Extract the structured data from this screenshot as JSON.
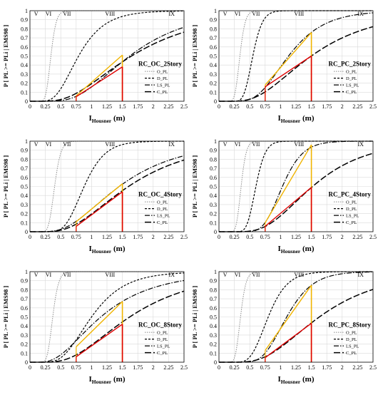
{
  "chart_data": [
    {
      "type": "line",
      "title": "RC_OC_2Story",
      "xlabel": "I",
      "xlabel_sub": "Housner",
      "xlabel_unit": " (m)",
      "ylabel": "P [ PL >= PLi | EMS98 ]",
      "xlim": [
        0,
        2.5
      ],
      "ylim": [
        0,
        1
      ],
      "xticks": [
        "0",
        "0.25",
        "0.5",
        "0.75",
        "1",
        "1.25",
        "1.5",
        "1.75",
        "2",
        "2.25",
        "2.5"
      ],
      "yticks": [
        "0",
        "0.1",
        "0.2",
        "0.3",
        "0.4",
        "0.5",
        "0.6",
        "0.7",
        "0.8",
        "0.9",
        "1"
      ],
      "intensity_labels": [
        {
          "label": "V",
          "x": 0.1
        },
        {
          "label": "VI",
          "x": 0.3
        },
        {
          "label": "VII",
          "x": 0.6
        },
        {
          "label": "VIII",
          "x": 1.3
        },
        {
          "label": "IX",
          "x": 2.3
        }
      ],
      "legend_position": "right-middle",
      "series": [
        {
          "name": "O_PL",
          "median": 0.34,
          "beta": 0.2
        },
        {
          "name": "D_PL",
          "median": 0.79,
          "beta": 0.42
        },
        {
          "name": "LS_PL",
          "median": 1.62,
          "beta": 0.48
        },
        {
          "name": "C_PL",
          "median": 1.65,
          "beta": 0.58
        }
      ],
      "highlights": [
        {
          "color": "#f0b400",
          "x_from": 0.75,
          "x_to": 1.5,
          "y_at_start": 0.06,
          "y_at_end": 0.51
        },
        {
          "color": "#e00000",
          "x_from": 0.75,
          "x_to": 1.5,
          "y_at_start": 0.05,
          "y_at_end": 0.38
        }
      ]
    },
    {
      "type": "line",
      "title": "RC_PC_2Story",
      "xlabel": "I",
      "xlabel_sub": "Housner",
      "xlabel_unit": " (m)",
      "ylabel": "P [ PL >= PLi | EMS98 ]",
      "xlim": [
        0,
        2.5
      ],
      "ylim": [
        0,
        1
      ],
      "xticks": [
        "0",
        "0.25",
        "0.5",
        "0.75",
        "1",
        "1.25",
        "1.5",
        "1.75",
        "2",
        "2.25",
        "2.5"
      ],
      "yticks": [
        "0",
        "0.1",
        "0.2",
        "0.3",
        "0.4",
        "0.5",
        "0.6",
        "0.7",
        "0.8",
        "0.9",
        "1"
      ],
      "intensity_labels": [
        {
          "label": "V",
          "x": 0.1
        },
        {
          "label": "VI",
          "x": 0.3
        },
        {
          "label": "VII",
          "x": 0.6
        },
        {
          "label": "VIII",
          "x": 1.3
        },
        {
          "label": "IX",
          "x": 2.3
        }
      ],
      "legend_position": "right-middle",
      "series": [
        {
          "name": "O_PL",
          "median": 0.34,
          "beta": 0.2
        },
        {
          "name": "D_PL",
          "median": 0.55,
          "beta": 0.22
        },
        {
          "name": "LS_PL",
          "median": 1.13,
          "beta": 0.4
        },
        {
          "name": "C_PL",
          "median": 1.5,
          "beta": 0.55
        }
      ],
      "highlights": [
        {
          "color": "#f0b400",
          "x_from": 0.75,
          "x_to": 1.5,
          "y_at_start": 0.18,
          "y_at_end": 0.76
        },
        {
          "color": "#e00000",
          "x_from": 0.75,
          "x_to": 1.5,
          "y_at_start": 0.16,
          "y_at_end": 0.5
        }
      ]
    },
    {
      "type": "line",
      "title": "RC_OC_4Story",
      "xlabel": "I",
      "xlabel_sub": "Housner",
      "xlabel_unit": " (m)",
      "ylabel": "P [ PL >= PLi | EMS98 ]",
      "xlim": [
        0,
        2.5
      ],
      "ylim": [
        0,
        1
      ],
      "xticks": [
        "0",
        "0.25",
        "0.5",
        "0.75",
        "1",
        "1.25",
        "1.5",
        "1.75",
        "2",
        "2.25",
        "2.5"
      ],
      "yticks": [
        "0",
        "0.1",
        "0.2",
        "0.3",
        "0.4",
        "0.5",
        "0.6",
        "0.7",
        "0.8",
        "0.9",
        "1"
      ],
      "intensity_labels": [
        {
          "label": "V",
          "x": 0.1
        },
        {
          "label": "VI",
          "x": 0.3
        },
        {
          "label": "VII",
          "x": 0.6
        },
        {
          "label": "VIII",
          "x": 1.3
        },
        {
          "label": "IX",
          "x": 2.3
        }
      ],
      "legend_position": "right-middle",
      "series": [
        {
          "name": "O_PL",
          "median": 0.4,
          "beta": 0.2
        },
        {
          "name": "D_PL",
          "median": 0.88,
          "beta": 0.3
        },
        {
          "name": "LS_PL",
          "median": 1.45,
          "beta": 0.55
        },
        {
          "name": "C_PL",
          "median": 1.6,
          "beta": 0.55
        }
      ],
      "highlights": [
        {
          "color": "#f0b400",
          "x_from": 0.75,
          "x_to": 1.5,
          "y_at_start": 0.11,
          "y_at_end": 0.53
        },
        {
          "color": "#e00000",
          "x_from": 0.75,
          "x_to": 1.5,
          "y_at_start": 0.06,
          "y_at_end": 0.44
        }
      ]
    },
    {
      "type": "line",
      "title": "RC_PC_4Story",
      "xlabel": "I",
      "xlabel_sub": "Housner",
      "xlabel_unit": " (m)",
      "ylabel": "P [ PL >= PLi | EMS98 ]",
      "xlim": [
        0,
        2.5
      ],
      "ylim": [
        0,
        1
      ],
      "xticks": [
        "0",
        "0.25",
        "0.5",
        "0.75",
        "1",
        "1.25",
        "1.5",
        "1.75",
        "2",
        "2.25",
        "2.5"
      ],
      "yticks": [
        "0",
        "0.1",
        "0.2",
        "0.3",
        "0.4",
        "0.5",
        "0.6",
        "0.7",
        "0.8",
        "0.9",
        "1"
      ],
      "intensity_labels": [
        {
          "label": "V",
          "x": 0.1
        },
        {
          "label": "VI",
          "x": 0.3
        },
        {
          "label": "VII",
          "x": 0.6
        },
        {
          "label": "VIII",
          "x": 1.3
        },
        {
          "label": "IX",
          "x": 2.3
        }
      ],
      "legend_position": "right-middle",
      "series": [
        {
          "name": "O_PL",
          "median": 0.36,
          "beta": 0.18
        },
        {
          "name": "D_PL",
          "median": 0.6,
          "beta": 0.2
        },
        {
          "name": "LS_PL",
          "median": 1.03,
          "beta": 0.25
        },
        {
          "name": "C_PL",
          "median": 1.52,
          "beta": 0.45
        }
      ],
      "highlights": [
        {
          "color": "#f0b400",
          "x_from": 0.75,
          "x_to": 1.5,
          "y_at_start": 0.1,
          "y_at_end": 0.96
        },
        {
          "color": "#e00000",
          "x_from": 0.75,
          "x_to": 1.5,
          "y_at_start": 0.06,
          "y_at_end": 0.49
        }
      ]
    },
    {
      "type": "line",
      "title": "RC_OC_8Story",
      "xlabel": "I",
      "xlabel_sub": "Housner",
      "xlabel_unit": " (m)",
      "ylabel": "P [ PL >= PLi | EMS98 ]",
      "xlim": [
        0,
        2.5
      ],
      "ylim": [
        0,
        1
      ],
      "xticks": [
        "0",
        "0.25",
        "0.5",
        "0.75",
        "1",
        "1.25",
        "1.5",
        "1.75",
        "2",
        "2.25",
        "2.5"
      ],
      "yticks": [
        "0",
        "0.1",
        "0.2",
        "0.3",
        "0.4",
        "0.5",
        "0.6",
        "0.7",
        "0.8",
        "0.9",
        "1"
      ],
      "intensity_labels": [
        {
          "label": "V",
          "x": 0.1
        },
        {
          "label": "VI",
          "x": 0.3
        },
        {
          "label": "VII",
          "x": 0.6
        },
        {
          "label": "VIII",
          "x": 1.3
        },
        {
          "label": "IX",
          "x": 2.3
        }
      ],
      "legend_position": "right-middle",
      "series": [
        {
          "name": "O_PL",
          "median": 0.37,
          "beta": 0.2
        },
        {
          "name": "D_PL",
          "median": 1.0,
          "beta": 0.42
        },
        {
          "name": "LS_PL",
          "median": 1.15,
          "beta": 0.6
        },
        {
          "name": "C_PL",
          "median": 1.62,
          "beta": 0.55
        }
      ],
      "highlights": [
        {
          "color": "#f0b400",
          "x_from": 0.75,
          "x_to": 1.5,
          "y_at_start": 0.17,
          "y_at_end": 0.67
        },
        {
          "color": "#e00000",
          "x_from": 0.75,
          "x_to": 1.5,
          "y_at_start": 0.06,
          "y_at_end": 0.42
        }
      ]
    },
    {
      "type": "line",
      "title": "RC_PC_8Story",
      "xlabel": "I",
      "xlabel_sub": "Housner",
      "xlabel_unit": " (m)",
      "ylabel": "P [ PL >= PLi | EMS98 ]",
      "xlim": [
        0,
        2.5
      ],
      "ylim": [
        0,
        1
      ],
      "xticks": [
        "0",
        "0.25",
        "0.5",
        "0.75",
        "1",
        "1.25",
        "1.5",
        "1.75",
        "2",
        "2.25",
        "2.5"
      ],
      "yticks": [
        "0",
        "0.1",
        "0.2",
        "0.3",
        "0.4",
        "0.5",
        "0.6",
        "0.7",
        "0.8",
        "0.9",
        "1"
      ],
      "intensity_labels": [
        {
          "label": "V",
          "x": 0.1
        },
        {
          "label": "VI",
          "x": 0.3
        },
        {
          "label": "VII",
          "x": 0.6
        },
        {
          "label": "VIII",
          "x": 1.3
        },
        {
          "label": "IX",
          "x": 2.3
        }
      ],
      "legend_position": "right-middle",
      "series": [
        {
          "name": "O_PL",
          "median": 0.35,
          "beta": 0.2
        },
        {
          "name": "D_PL",
          "median": 0.8,
          "beta": 0.3
        },
        {
          "name": "LS_PL",
          "median": 1.1,
          "beta": 0.3
        },
        {
          "name": "C_PL",
          "median": 1.63,
          "beta": 0.5
        }
      ],
      "highlights": [
        {
          "color": "#f0b400",
          "x_from": 0.75,
          "x_to": 1.5,
          "y_at_start": 0.13,
          "y_at_end": 0.85
        },
        {
          "color": "#e00000",
          "x_from": 0.75,
          "x_to": 1.5,
          "y_at_start": 0.05,
          "y_at_end": 0.43
        }
      ]
    }
  ]
}
